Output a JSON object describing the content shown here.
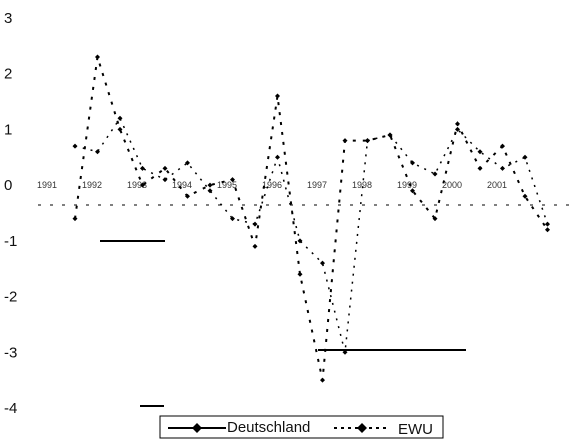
{
  "chart_data": {
    "type": "line",
    "title": "",
    "xlabel": "",
    "ylabel": "",
    "ylim": [
      -4,
      3
    ],
    "yticks": [
      "3",
      "2",
      "1",
      "0",
      "-1",
      "-2",
      "-3",
      "-4"
    ],
    "categories": [
      "1991",
      "1992",
      "1993",
      "1994",
      "1995",
      "1996",
      "1997",
      "1998",
      "1999",
      "2000",
      "2001"
    ],
    "grid": false,
    "legend_position": "bottom",
    "series": [
      {
        "name": "Deutschland",
        "style": "solid",
        "color": "#000000",
        "x": [
          0.0,
          0.5,
          1.0,
          1.5,
          2.0,
          2.5,
          3.0,
          3.5,
          4.0,
          4.5,
          5.0,
          5.5,
          6.0,
          6.5,
          7.0,
          7.5,
          8.0,
          8.5,
          9.0,
          9.5,
          10.0,
          10.5
        ],
        "values": [
          0.7,
          0.6,
          1.2,
          0.3,
          0.1,
          0.4,
          -0.1,
          -0.6,
          -0.7,
          0.5,
          -1.0,
          -1.4,
          -3.0,
          0.8,
          0.9,
          0.4,
          0.2,
          1.0,
          0.6,
          0.3,
          0.5,
          -0.7
        ]
      },
      {
        "name": "EWU",
        "style": "dashed",
        "color": "#000000",
        "x": [
          0.0,
          0.5,
          1.0,
          1.5,
          2.0,
          2.5,
          3.0,
          3.5,
          4.0,
          4.5,
          5.0,
          5.5,
          6.0,
          6.5,
          7.0,
          7.5,
          8.0,
          8.5,
          9.0,
          9.5,
          10.0,
          10.5
        ],
        "values": [
          -0.6,
          2.3,
          1.0,
          0.0,
          0.3,
          -0.2,
          0.0,
          0.1,
          -1.1,
          1.6,
          -1.6,
          -3.5,
          0.8,
          0.8,
          0.9,
          -0.1,
          -0.6,
          1.1,
          0.3,
          0.7,
          -0.2,
          -0.8
        ]
      }
    ]
  }
}
